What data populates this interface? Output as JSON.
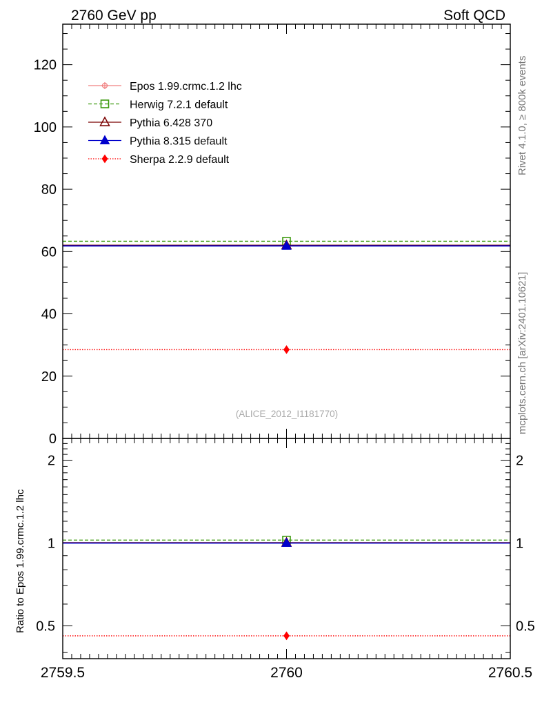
{
  "header": {
    "left_title": "2760 GeV pp",
    "right_title": "Soft QCD"
  },
  "side_labels": {
    "rivet": "Rivet 4.1.0, ≥ 800k events",
    "mcplots": "mcplots.cern.ch [arXiv:2401.10621]"
  },
  "watermark": "(ALICE_2012_I1181770)",
  "chart_data": [
    {
      "type": "line",
      "panel": "main",
      "xlim": [
        2759.5,
        2760.5
      ],
      "ylim": [
        0,
        133
      ],
      "yticks": [
        0,
        20,
        40,
        60,
        80,
        100,
        120
      ],
      "ytick_labels": [
        "0",
        "20",
        "40",
        "60",
        "80",
        "100",
        "120"
      ],
      "legend_position": "top-left",
      "series": [
        {
          "name": "Epos 1.99.crmc.1.2 lhc",
          "color": "#f08080",
          "dash": "",
          "marker": "open-cross",
          "x": [
            2760
          ],
          "y": [
            61.8
          ],
          "xerr": [
            0.5
          ]
        },
        {
          "name": "Herwig 7.2.1 default",
          "color": "#3d9a0e",
          "dash": "5,3",
          "marker": "open-square",
          "x": [
            2760
          ],
          "y": [
            63.3
          ],
          "xerr": [
            0.5
          ]
        },
        {
          "name": "Pythia 6.428 370",
          "color": "#7a0000",
          "dash": "",
          "marker": "open-triangle",
          "x": [
            2760
          ],
          "y": [
            62.0
          ],
          "xerr": [
            0.5
          ]
        },
        {
          "name": "Pythia 8.315 default",
          "color": "#0000cc",
          "dash": "",
          "marker": "filled-triangle",
          "x": [
            2760
          ],
          "y": [
            61.8
          ],
          "xerr": [
            0.5
          ]
        },
        {
          "name": "Sherpa 2.2.9 default",
          "color": "#ff0000",
          "dash": "1.5,2",
          "marker": "filled-diamond",
          "x": [
            2760
          ],
          "y": [
            28.5
          ],
          "xerr": [
            0.5
          ]
        }
      ]
    },
    {
      "type": "line",
      "panel": "ratio",
      "ylabel": "Ratio to Epos 1.99.crmc.1.2 lhc",
      "xlim": [
        2759.5,
        2760.5
      ],
      "ylim": [
        0.38,
        2.4
      ],
      "log_y": true,
      "xticks": [
        2759.5,
        2760,
        2760.5
      ],
      "xtick_labels": [
        "2759.5",
        "2760",
        "2760.5"
      ],
      "yticks": [
        0.5,
        1,
        2
      ],
      "ytick_labels": [
        "0.5",
        "1",
        "2"
      ],
      "series": [
        {
          "name": "Epos 1.99.crmc.1.2 lhc",
          "x": [
            2760
          ],
          "y": [
            1.0
          ]
        },
        {
          "name": "Herwig 7.2.1 default",
          "x": [
            2760
          ],
          "y": [
            1.025
          ]
        },
        {
          "name": "Pythia 6.428 370",
          "x": [
            2760
          ],
          "y": [
            1.003
          ]
        },
        {
          "name": "Pythia 8.315 default",
          "x": [
            2760
          ],
          "y": [
            1.0
          ]
        },
        {
          "name": "Sherpa 2.2.9 default",
          "x": [
            2760
          ],
          "y": [
            0.46
          ]
        }
      ]
    }
  ]
}
